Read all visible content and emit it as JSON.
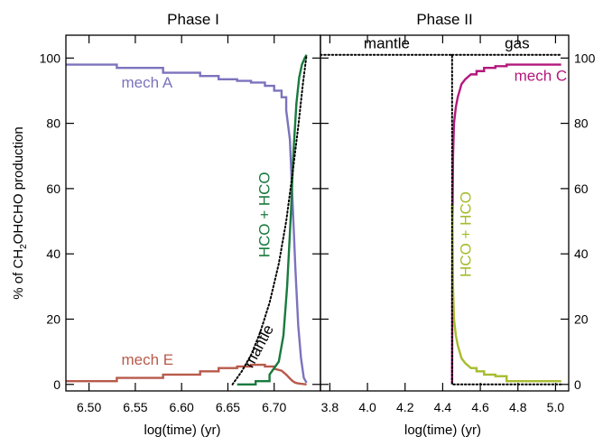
{
  "chart_data": [
    {
      "type": "line",
      "title": "Phase I",
      "xlabel": "log(time) (yr)",
      "ylabel_parts": [
        "% of CH",
        "2",
        "OHCHO production"
      ],
      "xlim": [
        6.475,
        6.75
      ],
      "ylim": [
        -2,
        107
      ],
      "xticks": [
        6.5,
        6.55,
        6.6,
        6.65,
        6.7
      ],
      "xtick_labels": [
        "6.50",
        "6.55",
        "6.60",
        "6.65",
        "6.70"
      ],
      "yticks": [
        0,
        20,
        40,
        60,
        80,
        100
      ],
      "ytick_labels": [
        "0",
        "20",
        "40",
        "60",
        "80",
        "100"
      ],
      "grid": false,
      "series": [
        {
          "name": "mech A",
          "color": "#7b73bd",
          "dash": "solid",
          "x": [
            6.475,
            6.53,
            6.53,
            6.58,
            6.58,
            6.62,
            6.62,
            6.64,
            6.64,
            6.66,
            6.66,
            6.675,
            6.675,
            6.69,
            6.69,
            6.7,
            6.7,
            6.708,
            6.708,
            6.713,
            6.713,
            6.717,
            6.72,
            6.723,
            6.726,
            6.729,
            6.732,
            6.735
          ],
          "y": [
            98,
            98,
            97,
            97,
            95.5,
            95.5,
            94.5,
            94.5,
            93.5,
            93.5,
            93,
            93,
            92.5,
            92.5,
            91.5,
            91.5,
            90,
            90,
            88,
            88,
            84,
            75,
            55,
            35,
            18,
            8,
            2,
            0.5
          ]
        },
        {
          "name": "mech E",
          "color": "#b85a4b",
          "dash": "solid",
          "x": [
            6.475,
            6.53,
            6.53,
            6.58,
            6.58,
            6.62,
            6.62,
            6.64,
            6.64,
            6.66,
            6.66,
            6.675,
            6.675,
            6.69,
            6.69,
            6.7,
            6.7,
            6.708,
            6.713,
            6.717,
            6.72,
            6.723,
            6.726,
            6.729,
            6.732,
            6.735
          ],
          "y": [
            1,
            1,
            2,
            2,
            3,
            3,
            4,
            4,
            5,
            5,
            5.5,
            5.5,
            6,
            6,
            5.5,
            5.5,
            4.8,
            4.2,
            3,
            1.8,
            1,
            0.5,
            0.3,
            0.2,
            0.1,
            0
          ]
        },
        {
          "name": "HCO + HCO",
          "color": "#1a7a3e",
          "dash": "solid",
          "x": [
            6.66,
            6.68,
            6.68,
            6.695,
            6.695,
            6.705,
            6.71,
            6.714,
            6.718,
            6.721,
            6.724,
            6.727,
            6.73,
            6.733,
            6.735
          ],
          "y": [
            0,
            0,
            1,
            1,
            3,
            7,
            15,
            30,
            52,
            72,
            86,
            94,
            98,
            100,
            101
          ]
        },
        {
          "name": "mantle",
          "color": "#000000",
          "dash": "dotted",
          "x": [
            6.655,
            6.665,
            6.675,
            6.685,
            6.695,
            6.705,
            6.713,
            6.72,
            6.726,
            6.731,
            6.735
          ],
          "y": [
            0,
            4,
            9,
            16,
            25,
            37,
            50,
            65,
            79,
            92,
            101
          ]
        }
      ],
      "annotations": [
        {
          "text": "mech A",
          "x": 6.535,
          "y": 91,
          "color": "#7b73bd",
          "rotation": 0
        },
        {
          "text": "mech E",
          "x": 6.535,
          "y": 6,
          "color": "#b85a4b",
          "rotation": 0
        },
        {
          "text": "HCO + HCO",
          "x": 6.695,
          "y": 52,
          "color": "#1a7a3e",
          "rotation": -90
        },
        {
          "text": "mantle",
          "x": 6.688,
          "y": 11,
          "color": "#000000",
          "rotation": -62
        }
      ]
    },
    {
      "type": "line",
      "title": "Phase II",
      "xlabel": "log(time) (yr)",
      "xlim": [
        3.75,
        5.07
      ],
      "ylim": [
        -2,
        107
      ],
      "xticks": [
        3.8,
        4.0,
        4.2,
        4.4,
        4.6,
        4.8,
        5.0
      ],
      "xtick_labels": [
        "3.8",
        "4.0",
        "4.2",
        "4.4",
        "4.6",
        "4.8",
        "5.0"
      ],
      "yticks": [
        0,
        20,
        40,
        60,
        80,
        100
      ],
      "ytick_labels": [
        "0",
        "20",
        "40",
        "60",
        "80",
        "100"
      ],
      "grid": false,
      "series": [
        {
          "name": "mech C",
          "color": "#b3187c",
          "dash": "solid",
          "x": [
            4.45,
            4.452,
            4.455,
            4.46,
            4.47,
            4.48,
            4.49,
            4.5,
            4.52,
            4.55,
            4.58,
            4.58,
            4.62,
            4.62,
            4.68,
            4.68,
            4.74,
            4.74,
            5.03
          ],
          "y": [
            0,
            50,
            70,
            80,
            85,
            88,
            90,
            92,
            93.5,
            95,
            95,
            96,
            96,
            97,
            97,
            97.5,
            97.5,
            98,
            98
          ]
        },
        {
          "name": "HCO + HCO",
          "color": "#a8bb2e",
          "dash": "solid",
          "x": [
            4.45,
            4.452,
            4.455,
            4.46,
            4.47,
            4.48,
            4.49,
            4.5,
            4.52,
            4.55,
            4.58,
            4.58,
            4.62,
            4.62,
            4.68,
            4.68,
            4.74,
            4.74,
            5.03
          ],
          "y": [
            55,
            50,
            30,
            20,
            15,
            12,
            10,
            8,
            6.5,
            5,
            5,
            4,
            4,
            3,
            3,
            2.5,
            2.5,
            1,
            1
          ]
        },
        {
          "name": "mantle",
          "color": "#000000",
          "dash": "dotted",
          "x": [
            3.75,
            4.45,
            4.45,
            4.45,
            5.03
          ],
          "y": [
            101,
            101,
            101,
            0,
            0
          ]
        },
        {
          "name": "gas",
          "color": "#000000",
          "dash": "dotted",
          "x": [
            4.45,
            5.03
          ],
          "y": [
            101,
            101
          ]
        }
      ],
      "annotations": [
        {
          "text": "mantle",
          "x": 3.98,
          "y": 103,
          "color": "#000000",
          "rotation": 0
        },
        {
          "text": "gas",
          "x": 4.73,
          "y": 103,
          "color": "#000000",
          "rotation": 0
        },
        {
          "text": "mech C",
          "x": 4.78,
          "y": 93,
          "color": "#b3187c",
          "rotation": 0
        },
        {
          "text": "HCO + HCO",
          "x": 4.55,
          "y": 46,
          "color": "#a8bb2e",
          "rotation": -90
        }
      ]
    }
  ]
}
